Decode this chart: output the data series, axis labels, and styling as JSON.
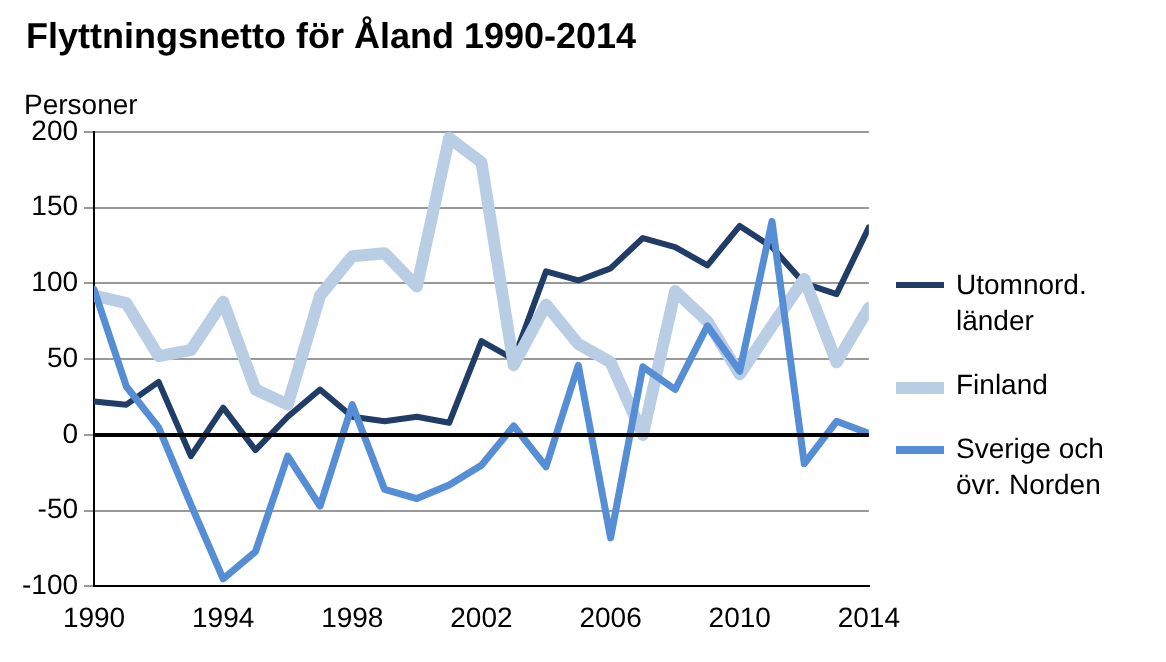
{
  "chart_data": {
    "type": "line",
    "title": "Flyttningsnetto för Åland 1990-2014",
    "ylabel": "Personer",
    "x": [
      1990,
      1991,
      1992,
      1993,
      1994,
      1995,
      1996,
      1997,
      1998,
      1999,
      2000,
      2001,
      2002,
      2003,
      2004,
      2005,
      2006,
      2007,
      2008,
      2009,
      2010,
      2011,
      2012,
      2013,
      2014
    ],
    "series": [
      {
        "name": "Utomnord. länder",
        "color": "#1f3d66",
        "values": [
          22,
          20,
          35,
          -14,
          18,
          -10,
          12,
          30,
          12,
          9,
          12,
          8,
          62,
          50,
          108,
          102,
          110,
          130,
          124,
          112,
          138,
          124,
          100,
          93,
          137
        ]
      },
      {
        "name": "Finland",
        "color": "#b9cde5",
        "values": [
          92,
          87,
          52,
          56,
          88,
          30,
          20,
          92,
          118,
          120,
          98,
          196,
          180,
          46,
          86,
          60,
          48,
          0,
          95,
          75,
          40,
          72,
          103,
          48,
          84
        ]
      },
      {
        "name": "Sverige och övr. Norden",
        "color": "#558ed5",
        "values": [
          96,
          32,
          5,
          -46,
          -95,
          -77,
          -14,
          -47,
          20,
          -36,
          -42,
          -33,
          -20,
          6,
          -21,
          46,
          -68,
          45,
          30,
          72,
          42,
          141,
          -19,
          9,
          1
        ]
      }
    ],
    "xlim": [
      1990,
      2014
    ],
    "xticks": [
      1990,
      1994,
      1998,
      2002,
      2006,
      2010,
      2014
    ],
    "ylim": [
      -100,
      200
    ],
    "yticks": [
      -100,
      -50,
      0,
      50,
      100,
      150,
      200
    ],
    "ref_lines": [
      {
        "axis": "y",
        "value": 0,
        "color": "#000000"
      }
    ],
    "grid": "y",
    "legend": "right",
    "marker": "none",
    "line_style": "solid"
  }
}
